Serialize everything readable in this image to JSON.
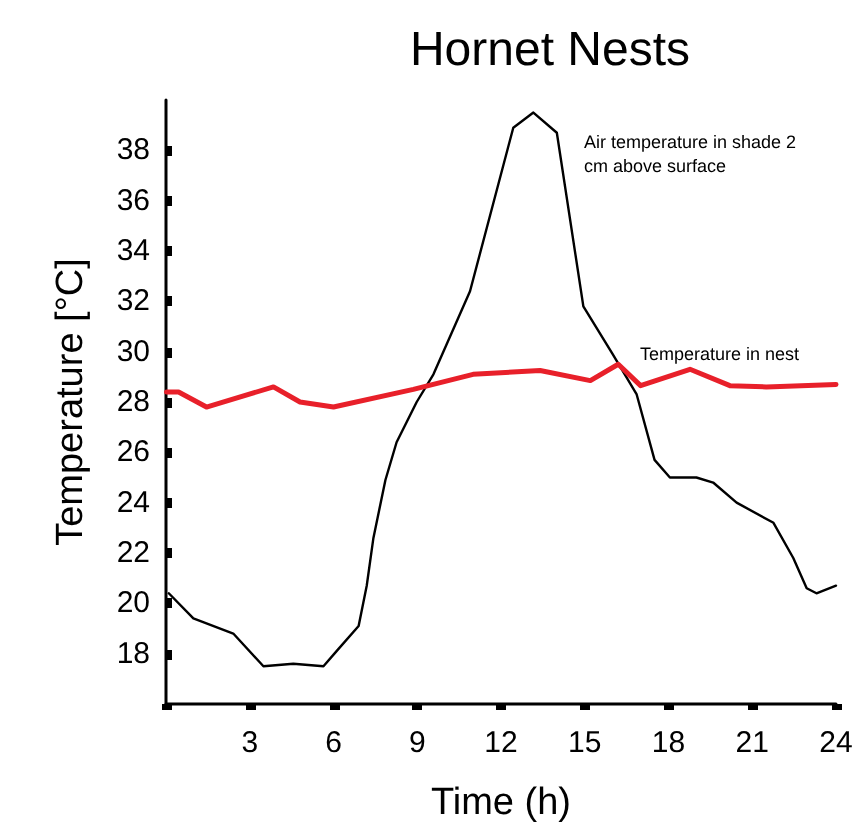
{
  "chart_data": {
    "type": "line",
    "title": "Hornet Nests",
    "xlabel": "Time (h)",
    "ylabel": "Temperature [°C]",
    "xlim": [
      0,
      24
    ],
    "xticks": [
      {
        "value": 0,
        "label": null
      },
      3,
      6,
      9,
      12,
      15,
      18,
      21,
      24
    ],
    "ylim": [
      16,
      40
    ],
    "yticks": [
      18,
      20,
      22,
      24,
      26,
      28,
      30,
      32,
      34,
      36,
      38
    ],
    "grid": false,
    "marker": "none",
    "line_style": "solid",
    "series": [
      {
        "color": "#000000",
        "x": [
          0.1,
          0.98,
          2.41,
          3.49,
          4.56,
          5.64,
          6.11,
          6.9,
          7.19,
          7.43,
          7.86,
          8.26,
          8.98,
          9.58,
          10.89,
          12.44,
          13.16,
          14.0,
          14.95,
          16.0,
          16.86,
          17.5,
          18.05,
          19.0,
          19.6,
          20.44,
          21.76,
          22.47,
          22.95,
          23.3,
          24.0
        ],
        "values": [
          20.4,
          19.4,
          18.8,
          17.5,
          17.6,
          17.5,
          18.1,
          19.1,
          20.7,
          22.6,
          24.9,
          26.4,
          28.0,
          29.1,
          32.4,
          38.9,
          39.5,
          38.7,
          31.8,
          29.9,
          28.3,
          25.7,
          25.0,
          25.0,
          24.8,
          24.0,
          23.2,
          21.8,
          20.6,
          20.4,
          20.7
        ]
      },
      {
        "color": "#e8202a",
        "x": [
          0.02,
          0.45,
          1.45,
          3.85,
          4.8,
          6.0,
          8.86,
          11.0,
          13.4,
          15.2,
          16.2,
          17.0,
          18.77,
          20.2,
          21.5,
          24.0
        ],
        "values": [
          28.4,
          28.4,
          27.8,
          28.6,
          28.0,
          27.8,
          28.5,
          29.1,
          29.25,
          28.85,
          29.5,
          28.65,
          29.3,
          28.65,
          28.6,
          28.7
        ]
      }
    ],
    "annotations": [
      "Air temperature in shade 2 cm above surface",
      "Temperature in nest"
    ]
  }
}
